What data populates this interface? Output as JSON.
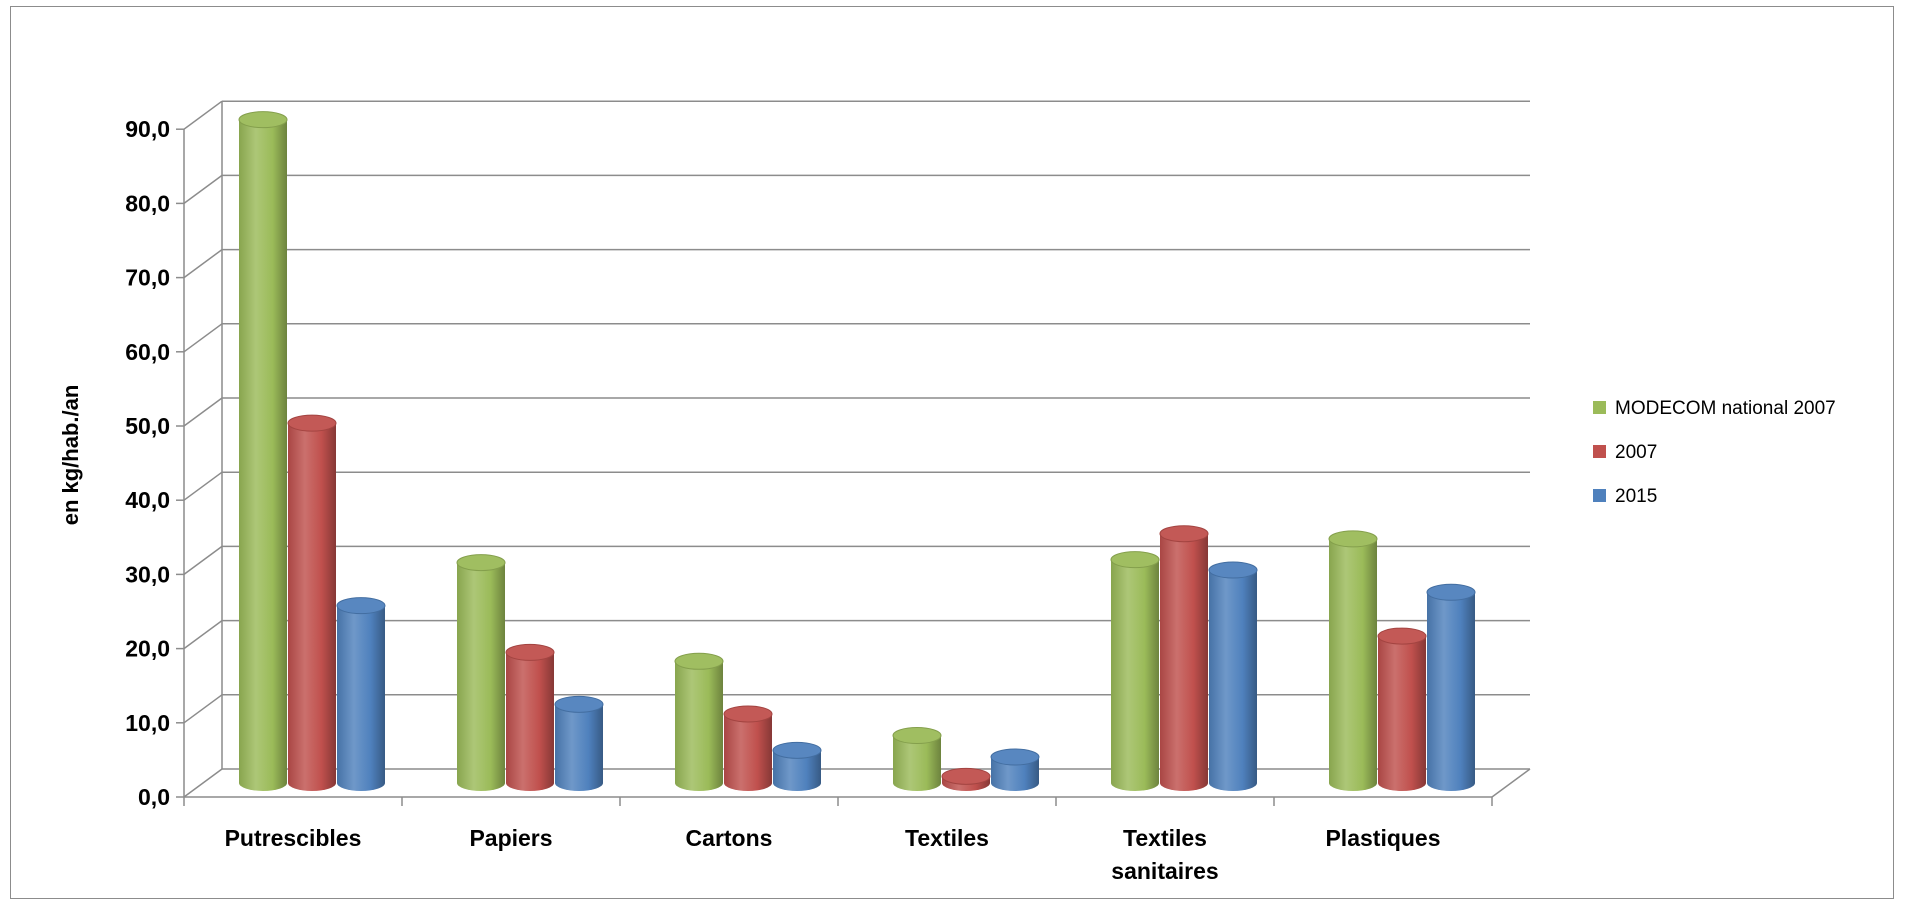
{
  "chart_data": {
    "type": "bar",
    "categories": [
      "Putrescibles",
      "Papiers",
      "Cartons",
      "Textiles",
      "Textiles sanitaires",
      "Plastiques"
    ],
    "category_lines": [
      [
        "Putrescibles"
      ],
      [
        "Papiers"
      ],
      [
        "Cartons"
      ],
      [
        "Textiles"
      ],
      [
        "Textiles",
        "sanitaires"
      ],
      [
        "Plastiques"
      ]
    ],
    "series": [
      {
        "name": "MODECOM national 2007",
        "color": "#9bbb59",
        "values": [
          89.4,
          29.7,
          16.4,
          6.4,
          30.1,
          32.9
        ]
      },
      {
        "name": "2007",
        "color": "#c0504d",
        "values": [
          48.5,
          17.6,
          9.3,
          0.9,
          33.6,
          19.8
        ]
      },
      {
        "name": "2015",
        "color": "#4f81bd",
        "values": [
          23.9,
          10.6,
          4.4,
          3.5,
          28.7,
          25.7
        ]
      }
    ],
    "ylabel": "en kg/hab./an",
    "xlabel": "",
    "title": "",
    "ylim": [
      0,
      90
    ],
    "yticks": [
      "0,0",
      "10,0",
      "20,0",
      "30,0",
      "40,0",
      "50,0",
      "60,0",
      "70,0",
      "80,0",
      "90,0"
    ],
    "grid": true,
    "legend_position": "right",
    "style": "3d-cylinder"
  }
}
